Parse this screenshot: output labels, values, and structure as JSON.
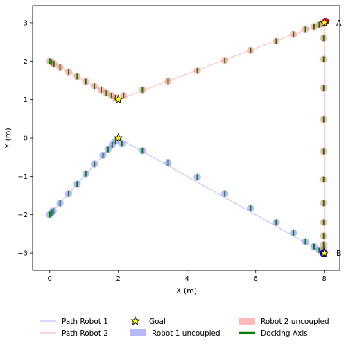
{
  "chart_data": {
    "type": "scatter",
    "title": "",
    "xlabel": "X (m)",
    "ylabel": "Y (m)",
    "xlim": [
      -0.5,
      8.45
    ],
    "ylim": [
      -3.45,
      3.45
    ],
    "xticks": [
      0,
      2,
      4,
      6,
      8
    ],
    "yticks": [
      -3,
      -2,
      -1,
      0,
      1,
      2,
      3
    ],
    "xtick_labels": [
      "0",
      "2",
      "4",
      "6",
      "8"
    ],
    "ytick_labels": [
      "−3",
      "−2",
      "−1",
      "0",
      "1",
      "2",
      "3"
    ],
    "grid": false,
    "legend_position": "bottom",
    "colors": {
      "path1": "#c8c8ff",
      "path2": "#ffc8c8",
      "robot1": "#8080ff",
      "robot2": "#ff8080",
      "axis": "#008000",
      "goal_fill": "#ffff00",
      "goal_edge": "#000000",
      "end_robot1": "#0000dd",
      "end_robot2": "#dd0000"
    },
    "goals": [
      {
        "x": 2.0,
        "y": 0.0
      },
      {
        "x": 2.0,
        "y": 1.0
      },
      {
        "x": 8.0,
        "y": 3.0
      },
      {
        "x": 8.0,
        "y": -3.0
      }
    ],
    "point_labels": [
      {
        "text": "A",
        "x": 8.35,
        "y": 3.0
      },
      {
        "text": "B",
        "x": 8.35,
        "y": -3.0
      }
    ],
    "series": [
      {
        "name": "Robot 1 uncoupled",
        "path_name": "Path Robot 1",
        "path": [
          [
            0,
            -2
          ],
          [
            2,
            0
          ],
          [
            8,
            -3
          ]
        ],
        "points": [
          [
            0.0,
            -2.0
          ],
          [
            0.05,
            -1.95
          ],
          [
            0.1,
            -1.9
          ],
          [
            0.3,
            -1.7
          ],
          [
            0.55,
            -1.45
          ],
          [
            0.8,
            -1.2
          ],
          [
            1.05,
            -0.93
          ],
          [
            1.3,
            -0.68
          ],
          [
            1.55,
            -0.45
          ],
          [
            1.7,
            -0.3
          ],
          [
            1.82,
            -0.18
          ],
          [
            1.92,
            -0.08
          ],
          [
            2.1,
            -0.15
          ],
          [
            2.7,
            -0.33
          ],
          [
            3.45,
            -0.65
          ],
          [
            4.3,
            -1.02
          ],
          [
            5.1,
            -1.45
          ],
          [
            5.85,
            -1.83
          ],
          [
            6.6,
            -2.2
          ],
          [
            7.1,
            -2.47
          ],
          [
            7.45,
            -2.7
          ],
          [
            7.7,
            -2.83
          ],
          [
            7.85,
            -2.92
          ],
          [
            7.95,
            -2.97
          ],
          [
            8.0,
            -3.0
          ]
        ]
      },
      {
        "name": "Robot 2 uncoupled",
        "path_name": "Path Robot 2",
        "path": [
          [
            0,
            2
          ],
          [
            2,
            1
          ],
          [
            8,
            3
          ],
          [
            8,
            -3
          ]
        ],
        "points": [
          [
            0.0,
            2.0
          ],
          [
            0.05,
            1.97
          ],
          [
            0.12,
            1.93
          ],
          [
            0.3,
            1.84
          ],
          [
            0.55,
            1.72
          ],
          [
            0.8,
            1.6
          ],
          [
            1.05,
            1.47
          ],
          [
            1.3,
            1.35
          ],
          [
            1.5,
            1.25
          ],
          [
            1.65,
            1.17
          ],
          [
            1.8,
            1.1
          ],
          [
            1.92,
            1.05
          ],
          [
            2.15,
            1.1
          ],
          [
            2.7,
            1.25
          ],
          [
            3.45,
            1.48
          ],
          [
            4.3,
            1.75
          ],
          [
            5.1,
            2.02
          ],
          [
            5.85,
            2.28
          ],
          [
            6.6,
            2.52
          ],
          [
            7.1,
            2.7
          ],
          [
            7.45,
            2.83
          ],
          [
            7.7,
            2.9
          ],
          [
            7.85,
            2.95
          ],
          [
            7.95,
            2.98
          ],
          [
            8.0,
            3.0
          ],
          [
            7.98,
            2.6
          ],
          [
            7.98,
            2.05
          ],
          [
            7.98,
            1.3
          ],
          [
            7.98,
            0.48
          ],
          [
            7.98,
            -0.35
          ],
          [
            7.98,
            -1.08
          ],
          [
            7.98,
            -1.7
          ],
          [
            7.98,
            -2.2
          ],
          [
            7.98,
            -2.55
          ],
          [
            7.98,
            -2.78
          ],
          [
            7.98,
            -2.9
          ],
          [
            7.98,
            -2.97
          ]
        ]
      }
    ],
    "legend": [
      {
        "key": "path1",
        "label": "Path Robot 1",
        "kind": "line"
      },
      {
        "key": "path2",
        "label": "Path Robot 2",
        "kind": "line"
      },
      {
        "key": "goal",
        "label": "Goal",
        "kind": "star"
      },
      {
        "key": "robot1",
        "label": "Robot 1 uncoupled",
        "kind": "patch"
      },
      {
        "key": "robot2",
        "label": "Robot 2 uncoupled",
        "kind": "patch"
      },
      {
        "key": "axis",
        "label": "Docking Axis",
        "kind": "thick-line"
      }
    ]
  }
}
